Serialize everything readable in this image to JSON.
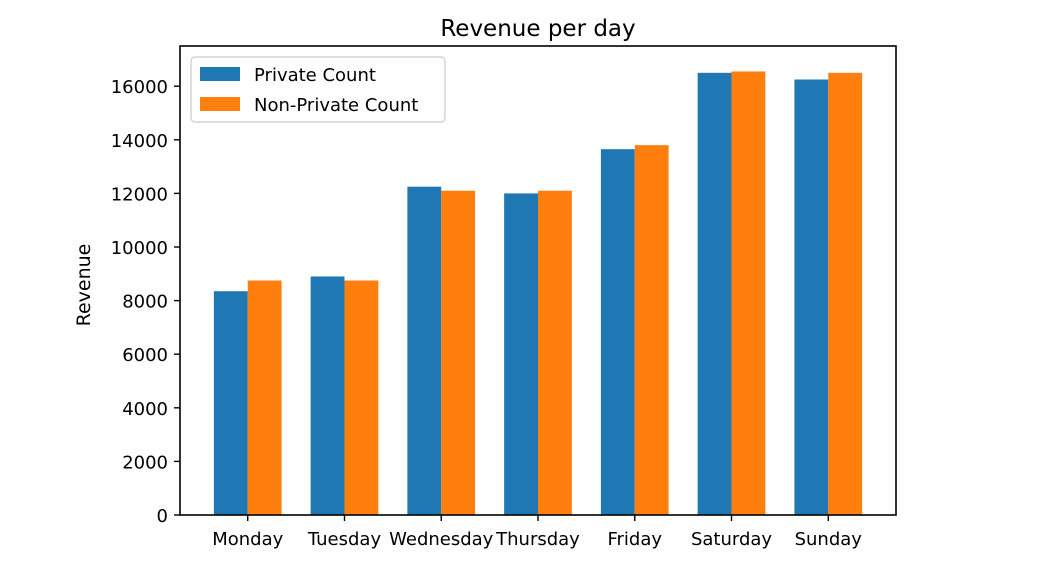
{
  "chart_data": {
    "type": "bar",
    "title": "Revenue per day",
    "xlabel": "",
    "ylabel": "Revenue",
    "categories": [
      "Monday",
      "Tuesday",
      "Wednesday",
      "Thursday",
      "Friday",
      "Saturday",
      "Sunday"
    ],
    "series": [
      {
        "name": "Private Count",
        "color": "#1f77b4",
        "values": [
          8350,
          8900,
          12250,
          12000,
          13650,
          16500,
          16250
        ]
      },
      {
        "name": "Non-Private Count",
        "color": "#ff7f0e",
        "values": [
          8750,
          8750,
          12100,
          12100,
          13800,
          16550,
          16500
        ]
      }
    ],
    "ylim": [
      0,
      17500
    ],
    "yticks": [
      0,
      2000,
      4000,
      6000,
      8000,
      10000,
      12000,
      14000,
      16000
    ],
    "grid": false,
    "legend_position": "upper-left"
  }
}
